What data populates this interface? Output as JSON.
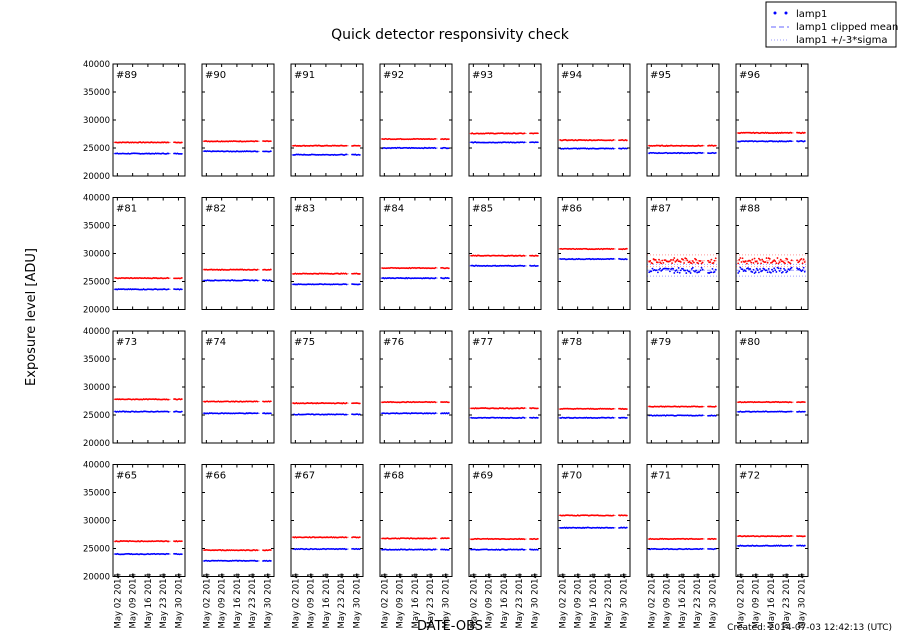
{
  "chart_data": {
    "type": "scatter",
    "title": "Quick detector responsivity check",
    "xlabel": "DATE-OBS",
    "ylabel": "Exposure level [ADU]",
    "ylim": [
      20000,
      40000
    ],
    "yticks": [
      "20000",
      "25000",
      "30000",
      "35000",
      "40000"
    ],
    "xlim": [
      "2014-04-30",
      "2014-06-02"
    ],
    "xticks": [
      "May 02 2014",
      "May 09 2014",
      "May 16 2014",
      "May 23 2014",
      "May 30 2014"
    ],
    "legend": {
      "placement": "top-right",
      "entries": [
        "lamp1",
        "lamp1 clipped mean",
        "lamp1 +/-3*sigma"
      ]
    },
    "footer": "Created: 2014-07-03 12:42:13 (UTC)",
    "colors": {
      "blue": "#0000ff",
      "red": "#ff0000"
    },
    "grid": false,
    "panels": [
      {
        "label": "#89",
        "blue": 24000,
        "red": 26000
      },
      {
        "label": "#90",
        "blue": 24400,
        "red": 26200
      },
      {
        "label": "#91",
        "blue": 23800,
        "red": 25400
      },
      {
        "label": "#92",
        "blue": 25000,
        "red": 26600
      },
      {
        "label": "#93",
        "blue": 26000,
        "red": 27600
      },
      {
        "label": "#94",
        "blue": 24900,
        "red": 26400
      },
      {
        "label": "#95",
        "blue": 24100,
        "red": 25400
      },
      {
        "label": "#96",
        "blue": 26200,
        "red": 27700
      },
      {
        "label": "#81",
        "blue": 23600,
        "red": 25600
      },
      {
        "label": "#82",
        "blue": 25200,
        "red": 27100
      },
      {
        "label": "#83",
        "blue": 24500,
        "red": 26400
      },
      {
        "label": "#84",
        "blue": 25600,
        "red": 27400
      },
      {
        "label": "#85",
        "blue": 27800,
        "red": 29600
      },
      {
        "label": "#86",
        "blue": 29000,
        "red": 30800
      },
      {
        "label": "#87",
        "blue": 27000,
        "red": 28700,
        "noisy": true
      },
      {
        "label": "#88",
        "blue": 27000,
        "red": 28700,
        "noisy": true
      },
      {
        "label": "#73",
        "blue": 25600,
        "red": 27800
      },
      {
        "label": "#74",
        "blue": 25300,
        "red": 27400
      },
      {
        "label": "#75",
        "blue": 25100,
        "red": 27100
      },
      {
        "label": "#76",
        "blue": 25300,
        "red": 27300
      },
      {
        "label": "#77",
        "blue": 24500,
        "red": 26200
      },
      {
        "label": "#78",
        "blue": 24500,
        "red": 26100
      },
      {
        "label": "#79",
        "blue": 24900,
        "red": 26500
      },
      {
        "label": "#80",
        "blue": 25600,
        "red": 27300
      },
      {
        "label": "#65",
        "blue": 24000,
        "red": 26300
      },
      {
        "label": "#66",
        "blue": 22800,
        "red": 24700
      },
      {
        "label": "#67",
        "blue": 24900,
        "red": 27000
      },
      {
        "label": "#68",
        "blue": 24800,
        "red": 26800
      },
      {
        "label": "#69",
        "blue": 24800,
        "red": 26700
      },
      {
        "label": "#70",
        "blue": 28700,
        "red": 30900
      },
      {
        "label": "#71",
        "blue": 24900,
        "red": 26700
      },
      {
        "label": "#72",
        "blue": 25500,
        "red": 27200
      }
    ]
  }
}
